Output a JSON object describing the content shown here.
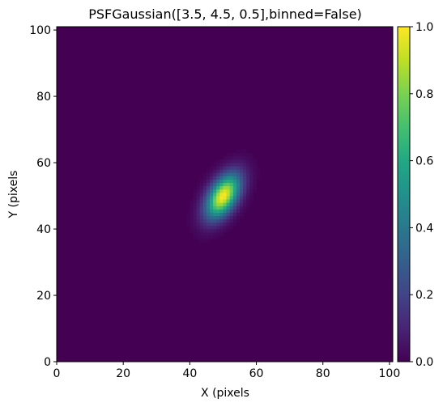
{
  "chart_data": {
    "type": "heatmap",
    "title": "PSFGaussian([3.5, 4.5, 0.5],binned=False)",
    "xlabel": "X (pixels",
    "ylabel": "Y (pixels",
    "xlim": [
      0,
      101
    ],
    "ylim": [
      0,
      101
    ],
    "x_ticks": [
      0,
      20,
      40,
      60,
      80,
      100
    ],
    "y_ticks": [
      0,
      20,
      40,
      60,
      80,
      100
    ],
    "psf": {
      "center_x": 50,
      "center_y": 50,
      "sigma_x": 3.5,
      "sigma_y": 4.5,
      "rho": 0.5,
      "peak": 1.0
    },
    "colorbar": {
      "colormap": "viridis",
      "vmin": 0.0,
      "vmax": 1.0,
      "ticks": [
        "0.0",
        "0.2",
        "0.4",
        "0.6",
        "0.8",
        "1.0"
      ]
    }
  }
}
